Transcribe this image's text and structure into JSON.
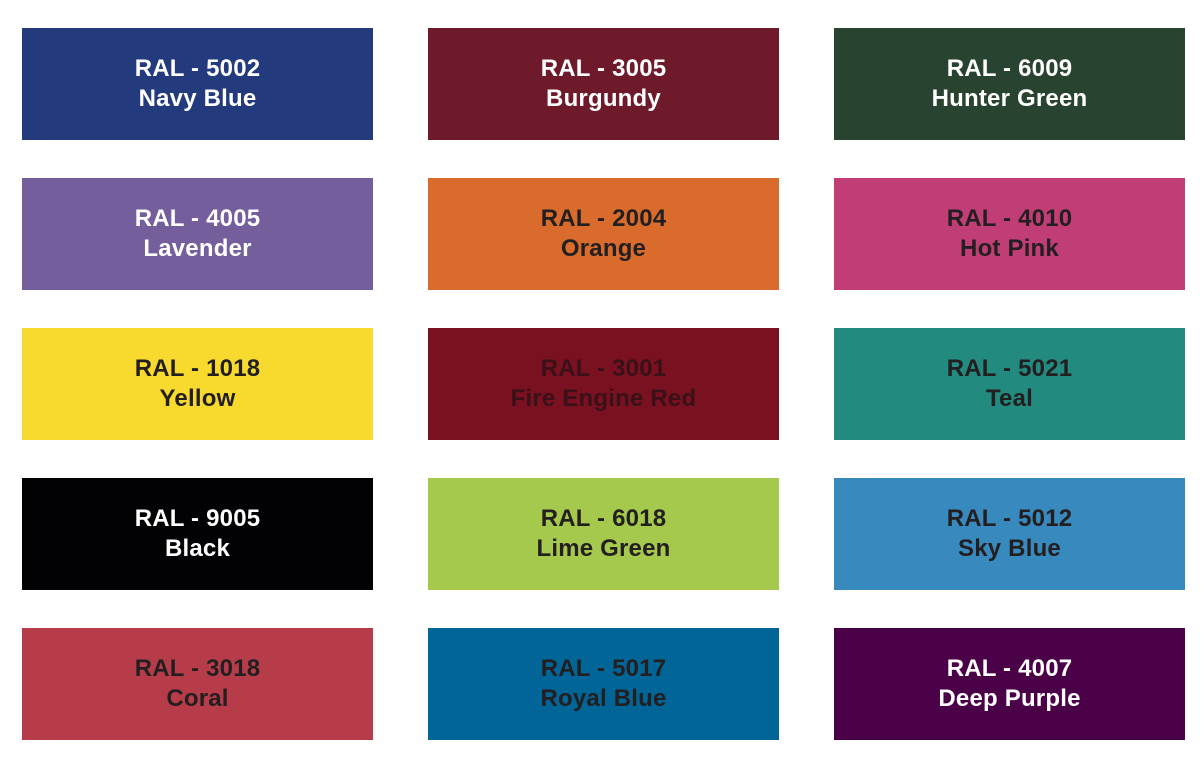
{
  "swatches": [
    {
      "code": "RAL - 5002",
      "name": "Navy Blue",
      "bg": "#233a7c",
      "text": "#ffffff"
    },
    {
      "code": "RAL - 3005",
      "name": "Burgundy",
      "bg": "#6e1a2a",
      "text": "#ffffff"
    },
    {
      "code": "RAL - 6009",
      "name": "Hunter Green",
      "bg": "#28432f",
      "text": "#ffffff"
    },
    {
      "code": "RAL - 4005",
      "name": "Lavender",
      "bg": "#745e9c",
      "text": "#ffffff"
    },
    {
      "code": "RAL - 2004",
      "name": "Orange",
      "bg": "#d96c2c",
      "text": "#231f20"
    },
    {
      "code": "RAL - 4010",
      "name": "Hot Pink",
      "bg": "#c03e75",
      "text": "#231f20"
    },
    {
      "code": "RAL - 1018",
      "name": "Yellow",
      "bg": "#f8da2e",
      "text": "#231f20"
    },
    {
      "code": "RAL - 3001",
      "name": "Fire Engine Red",
      "bg": "#7a1120",
      "text": "#3a1118"
    },
    {
      "code": "RAL - 5021",
      "name": "Teal",
      "bg": "#238a80",
      "text": "#231f20"
    },
    {
      "code": "RAL - 9005",
      "name": "Black",
      "bg": "#020205",
      "text": "#ffffff"
    },
    {
      "code": "RAL - 6018",
      "name": "Lime Green",
      "bg": "#a5c94d",
      "text": "#231f20"
    },
    {
      "code": "RAL - 5012",
      "name": "Sky Blue",
      "bg": "#3889bd",
      "text": "#231f20"
    },
    {
      "code": "RAL - 3018",
      "name": "Coral",
      "bg": "#b73c49",
      "text": "#231f20"
    },
    {
      "code": "RAL - 5017",
      "name": "Royal Blue",
      "bg": "#016597",
      "text": "#231f20"
    },
    {
      "code": "RAL - 4007",
      "name": "Deep Purple",
      "bg": "#4b0147",
      "text": "#ffffff"
    }
  ]
}
